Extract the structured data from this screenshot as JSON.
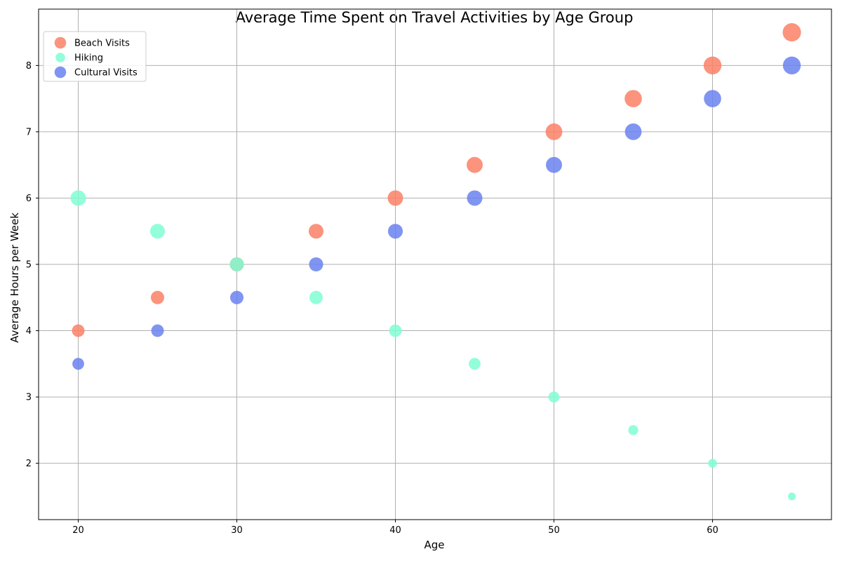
{
  "chart_data": {
    "type": "scatter",
    "title": "Average Time Spent on Travel Activities by Age Group",
    "xlabel": "Age",
    "ylabel": "Average Hours per Week",
    "xlim": [
      17.5,
      67.5
    ],
    "ylim": [
      1.15,
      8.85
    ],
    "xticks": [
      20,
      30,
      40,
      50,
      60
    ],
    "yticks": [
      2,
      3,
      4,
      5,
      6,
      7,
      8
    ],
    "grid": true,
    "legend_position": "top-left",
    "x": [
      20,
      25,
      30,
      35,
      40,
      45,
      50,
      55,
      60,
      65
    ],
    "series": [
      {
        "name": "Beach Visits",
        "color": "#fa8066",
        "values": [
          4.0,
          4.5,
          5.0,
          5.5,
          6.0,
          6.5,
          7.0,
          7.5,
          8.0,
          8.5
        ]
      },
      {
        "name": "Hiking",
        "color": "#7ffed4",
        "values": [
          6.0,
          5.5,
          5.0,
          4.5,
          4.0,
          3.5,
          3.0,
          2.5,
          2.0,
          1.5
        ]
      },
      {
        "name": "Cultural Visits",
        "color": "#6a81ee",
        "values": [
          3.5,
          4.0,
          4.5,
          5.0,
          5.5,
          6.0,
          6.5,
          7.0,
          7.5,
          8.0
        ]
      }
    ]
  }
}
